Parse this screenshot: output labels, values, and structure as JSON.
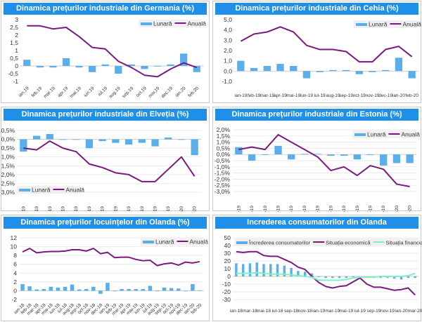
{
  "colors": {
    "title_bar": "#1f8fe8",
    "bars": "#5aaeea",
    "line": "#7b1a7e",
    "line2": "#7ff0c0"
  },
  "chart_data": [
    {
      "type": "bar+line",
      "title": "Dinamica prețurilor industriale din Germania (%)",
      "categories": [
        "ian.19",
        "feb.19",
        "mar.19",
        "apr.19",
        "mai.19",
        "iun.19",
        "iul.19",
        "aug.19",
        "sep.19",
        "oct.19",
        "nov.19",
        "dec.19",
        "ian.20",
        "feb.20"
      ],
      "ylim": [
        -1,
        3
      ],
      "yticks": [
        3,
        2.5,
        2,
        1.5,
        1,
        0.5,
        0,
        -0.5,
        -1
      ],
      "ytick_labels": [
        "3",
        "2,5",
        "2",
        "1,5",
        "1",
        "0,5",
        "0",
        "-0,5",
        "-1"
      ],
      "legend_position": "top-right",
      "grid": false,
      "series": [
        {
          "name": "Lunară",
          "kind": "bar",
          "values": [
            0.4,
            -0.1,
            -0.1,
            0.5,
            -0.1,
            -0.4,
            0.1,
            -0.5,
            0.1,
            -0.2,
            0,
            0.1,
            0.8,
            -0.4
          ]
        },
        {
          "name": "Anuală",
          "kind": "line",
          "values": [
            2.6,
            2.6,
            2.4,
            2.5,
            1.9,
            1.2,
            1.1,
            0.3,
            -0.1,
            -0.6,
            -0.7,
            -0.2,
            0.2,
            -0.1
          ]
        }
      ]
    },
    {
      "type": "bar+line",
      "title": "Dinamica prețurilor industriale din Cehia (%)",
      "categories": [
        "ian-19",
        "feb-19",
        "mar-19",
        "apr-19",
        "mai-19",
        "iun-19",
        "iul-19",
        "aug-19",
        "sep-19",
        "oct-19",
        "nov-19",
        "dec-19",
        "ian-20",
        "feb-20"
      ],
      "ylim": [
        -1,
        5
      ],
      "yticks": [
        5,
        4,
        3,
        2,
        1,
        0,
        -1
      ],
      "ytick_labels": [
        "5,0",
        "4,0",
        "3,0",
        "2,0",
        "1,0",
        "0,0",
        "-1,0"
      ],
      "legend_position": "top-right",
      "grid": false,
      "series": [
        {
          "name": "Lunară",
          "kind": "bar",
          "values": [
            1.0,
            0.3,
            0.5,
            0.7,
            0.5,
            -0.7,
            -0.1,
            0.1,
            0.1,
            -0.3,
            -0.1,
            0.1,
            1.3,
            -0.7
          ]
        },
        {
          "name": "Anuală",
          "kind": "line",
          "values": [
            2.9,
            3.6,
            3.8,
            4.3,
            3.8,
            2.5,
            2.1,
            2.1,
            1.9,
            0.9,
            0.9,
            2.1,
            2.4,
            1.4
          ]
        }
      ]
    },
    {
      "type": "bar+line",
      "title": "Dinamica prețurilor industriale din Elveția (%)",
      "categories": [
        "ian-19",
        "feb-19",
        "mar-19",
        "apr-19",
        "mai-19",
        "iun-19",
        "iul-19",
        "aug-19",
        "sep-19",
        "oct-19",
        "nov-19",
        "dec-19",
        "ian-20",
        "feb-20"
      ],
      "ylim": [
        -3,
        0.5
      ],
      "yticks": [
        0.5,
        0,
        -0.5,
        -1,
        -1.5,
        -2,
        -2.5,
        -3
      ],
      "ytick_labels": [
        "0,5%",
        "0,0%",
        "-0,5%",
        "-1,0%",
        "-1,5%",
        "-2,0%",
        "-2,5%",
        "-3,0%"
      ],
      "legend_position": "bottom-left",
      "grid": true,
      "series": [
        {
          "name": "Lunară",
          "kind": "bar",
          "values": [
            -0.7,
            0.2,
            0.3,
            0.0,
            0.0,
            -0.5,
            -0.1,
            -0.2,
            -0.3,
            -0.2,
            -0.4,
            0.1,
            0.0,
            -0.9
          ]
        },
        {
          "name": "Anuală",
          "kind": "line",
          "values": [
            -0.5,
            -0.6,
            -0.1,
            -0.5,
            -0.7,
            -1.4,
            -1.6,
            -1.9,
            -2.0,
            -2.4,
            -2.4,
            -1.7,
            -1.0,
            -2.1
          ]
        }
      ]
    },
    {
      "type": "bar+line",
      "title": "Dinamica prețurilor industriale din Estonia (%)",
      "categories": [
        "ian-19",
        "feb-19",
        "mar-19",
        "apr-19",
        "mai-19",
        "iun-19",
        "iul-19",
        "aug-19",
        "sep-19",
        "oct-19",
        "nov-19",
        "dec-19",
        "ian-20",
        "feb-20"
      ],
      "ylim": [
        -3,
        2
      ],
      "yticks": [
        2,
        1.5,
        1,
        0.5,
        0,
        -0.5,
        -1,
        -1.5,
        -2,
        -2.5,
        -3
      ],
      "ytick_labels": [
        "2,0%",
        "1,5%",
        "1,0%",
        "0,5%",
        "0,0%",
        "-0,5%",
        "-1,0%",
        "-1,5%",
        "-2,0%",
        "-2,5%",
        "-3,0%"
      ],
      "legend_position": "top-right",
      "grid": true,
      "series": [
        {
          "name": "Lunară",
          "kind": "bar",
          "values": [
            0.6,
            -0.5,
            0,
            0.7,
            -0.4,
            0.05,
            0.05,
            -0.1,
            -0.1,
            -0.4,
            -0.05,
            -0.9,
            -0.7,
            -0.7
          ]
        },
        {
          "name": "Anuală",
          "kind": "line",
          "values": [
            0.4,
            0.6,
            0.4,
            1.6,
            1.0,
            0.4,
            -0.2,
            -1.3,
            -1.0,
            -1.7,
            -0.9,
            -1.2,
            -2.4,
            -2.6
          ]
        }
      ]
    },
    {
      "type": "bar+line",
      "title": "Dinamica prețurilor locuințelor din Olanda (%)",
      "categories": [
        "ian-18",
        "feb-18",
        "mar-18",
        "apr-18",
        "mai-18",
        "iun-18",
        "iul-18",
        "aug-18",
        "sep-18",
        "oct-18",
        "nov-18",
        "dec-18",
        "ian-19",
        "feb-19",
        "mar-19",
        "apr-19",
        "mai-19",
        "iun-19",
        "iul-19",
        "aug-19",
        "sep-19",
        "oct-19",
        "nov-19",
        "dec-19",
        "ian-20",
        "feb-20"
      ],
      "ylim": [
        -2,
        12
      ],
      "yticks": [
        12,
        10,
        8,
        6,
        4,
        2,
        0,
        -2
      ],
      "ytick_labels": [
        "12",
        "10",
        "8",
        "6",
        "4",
        "2",
        "0",
        "-2"
      ],
      "legend_position": "top-right",
      "grid": true,
      "series": [
        {
          "name": "Lunară",
          "kind": "bar",
          "values": [
            1.5,
            1.0,
            0.3,
            0.4,
            0.9,
            0.7,
            0.9,
            1.4,
            0.3,
            0.4,
            0.9,
            -0.7,
            1.8,
            -0.1,
            0.4,
            0.4,
            0.4,
            0.4,
            1.1,
            0.0,
            0.7,
            0.6,
            0.5,
            0.0,
            1.5,
            0.1
          ]
        },
        {
          "name": "Anuală",
          "kind": "line",
          "values": [
            8.8,
            9.6,
            8.6,
            8.8,
            8.9,
            8.9,
            9.0,
            9.3,
            9.3,
            9.0,
            9.6,
            8.4,
            8.7,
            7.5,
            7.6,
            7.6,
            7.1,
            6.8,
            6.9,
            5.7,
            6.1,
            6.3,
            5.8,
            6.5,
            6.3,
            6.6
          ]
        }
      ]
    },
    {
      "type": "bar+line",
      "title": "Increderea consumatorilor din Olanda",
      "categories": [
        "ian-18",
        "feb-18",
        "mar-18",
        "apr-18",
        "mai-18",
        "iun-18",
        "iul-18",
        "aug-18",
        "sep-18",
        "oct-18",
        "nov-18",
        "dec-18",
        "ian-19",
        "feb-19",
        "mar-19",
        "apr-19",
        "mai-19",
        "iun-19",
        "iul-19",
        "aug-19",
        "sep-19",
        "oct-19",
        "nov-19",
        "dec-19",
        "ian-20",
        "feb-20",
        "mar-20"
      ],
      "ylim": [
        -30,
        50
      ],
      "yticks": [
        50,
        40,
        30,
        20,
        10,
        0,
        -10,
        -20,
        -30
      ],
      "ytick_labels": [
        "50",
        "40",
        "30",
        "20",
        "10",
        "0",
        "-10",
        "-20",
        "-30"
      ],
      "legend_position": "top",
      "grid": true,
      "series": [
        {
          "name": "Încrederea consumatorilor",
          "kind": "bar",
          "values": [
            17,
            16,
            17,
            18,
            16,
            16,
            16,
            14,
            11,
            7,
            6,
            4,
            -1,
            -2,
            -2,
            -2,
            -2,
            -1,
            -1,
            -1,
            -2,
            -2,
            -2,
            -3,
            -4,
            -2,
            -2
          ]
        },
        {
          "name": "Situația economică",
          "kind": "line",
          "values": [
            32,
            31,
            32,
            32,
            27,
            26,
            26,
            22,
            18,
            12,
            9,
            0,
            -8,
            -13,
            -15,
            -13,
            -12,
            -7,
            -2,
            -10,
            -14,
            -14,
            -16,
            -18,
            -17,
            -15,
            -24
          ]
        },
        {
          "name": "Situația financiară",
          "kind": "line2",
          "values": [
            4,
            4,
            4,
            5,
            4,
            3,
            3,
            3,
            2,
            1,
            0,
            -1,
            -5,
            -5,
            -5,
            -5,
            -4,
            -2,
            -1,
            -1,
            -1,
            0,
            0,
            0,
            0,
            1,
            4
          ]
        }
      ]
    }
  ]
}
